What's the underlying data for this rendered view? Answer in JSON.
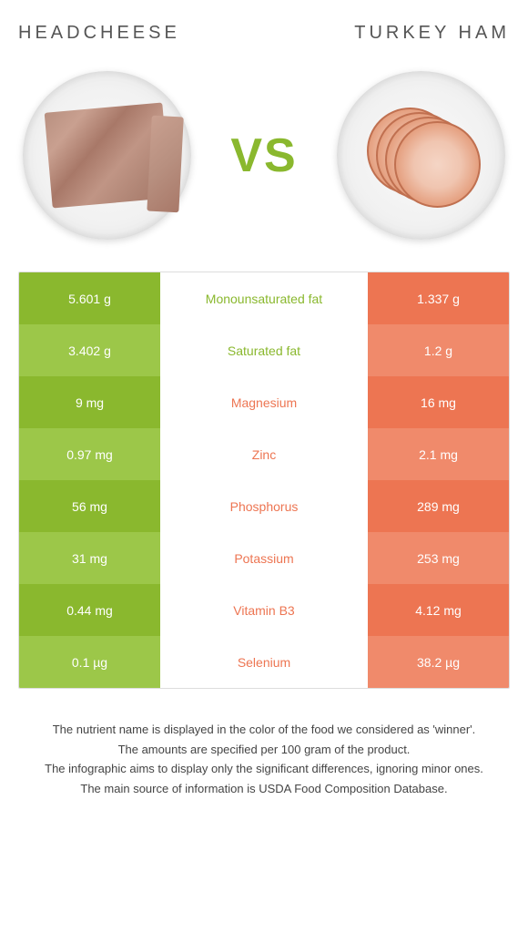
{
  "header": {
    "left": "HEADCHEESE",
    "right": "TURKEY HAM"
  },
  "vs": "VS",
  "colors": {
    "green_dark": "#8ab82e",
    "green_light": "#9cc749",
    "orange_dark": "#ed7552",
    "orange_light": "#f08a6b"
  },
  "rows": [
    {
      "left": "5.601 g",
      "center": "Monounsaturated fat",
      "right": "1.337 g",
      "winner": "left"
    },
    {
      "left": "3.402 g",
      "center": "Saturated fat",
      "right": "1.2 g",
      "winner": "left"
    },
    {
      "left": "9 mg",
      "center": "Magnesium",
      "right": "16 mg",
      "winner": "right"
    },
    {
      "left": "0.97 mg",
      "center": "Zinc",
      "right": "2.1 mg",
      "winner": "right"
    },
    {
      "left": "56 mg",
      "center": "Phosphorus",
      "right": "289 mg",
      "winner": "right"
    },
    {
      "left": "31 mg",
      "center": "Potassium",
      "right": "253 mg",
      "winner": "right"
    },
    {
      "left": "0.44 mg",
      "center": "Vitamin B3",
      "right": "4.12 mg",
      "winner": "right"
    },
    {
      "left": "0.1 µg",
      "center": "Selenium",
      "right": "38.2 µg",
      "winner": "right"
    }
  ],
  "footer": {
    "line1": "The nutrient name is displayed in the color of the food we considered as 'winner'.",
    "line2": "The amounts are specified per 100 gram of the product.",
    "line3": "The infographic aims to display only the significant differences, ignoring minor ones.",
    "line4": "The main source of information is USDA Food Composition Database."
  }
}
